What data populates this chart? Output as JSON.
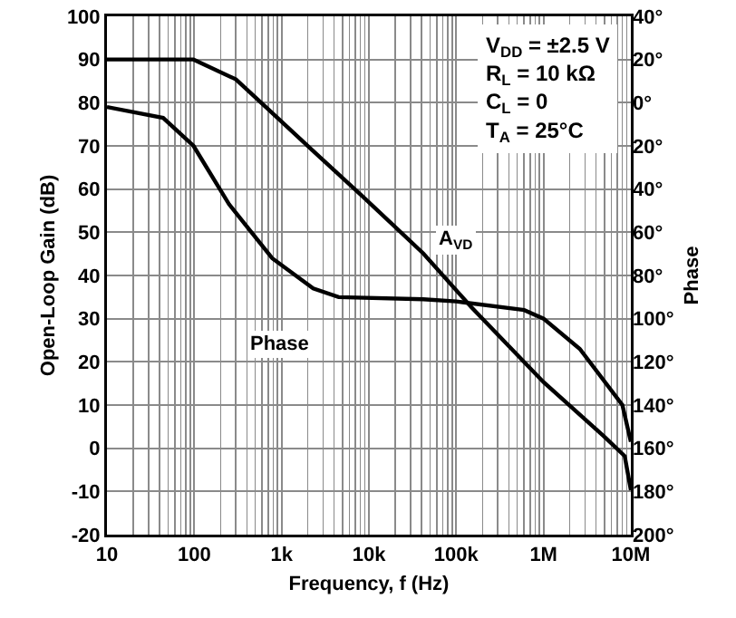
{
  "chart_data": {
    "type": "line",
    "xlabel": "Frequency, f (Hz)",
    "ylabel": "Open-Loop Gain (dB)",
    "y2label": "Phase",
    "xlim": [
      10,
      10000000
    ],
    "xticks": [
      10,
      100,
      {
        "value": 1000,
        "label": "1k"
      },
      {
        "value": 10000,
        "label": "10k"
      },
      {
        "value": 100000,
        "label": "100k"
      },
      {
        "value": 1000000,
        "label": "1M"
      },
      {
        "value": 10000000,
        "label": "10M"
      }
    ],
    "ylim": [
      -20,
      100
    ],
    "yticks": [
      -20,
      -10,
      0,
      10,
      20,
      30,
      40,
      50,
      60,
      70,
      80,
      90,
      100
    ],
    "y2lim": [
      200,
      -40
    ],
    "y2ticks": [
      {
        "value": -40,
        "label": "40°"
      },
      {
        "value": -20,
        "label": "20°"
      },
      {
        "value": 0,
        "label": "0°"
      },
      {
        "value": 20,
        "label": "20°"
      },
      {
        "value": 40,
        "label": "40°"
      },
      {
        "value": 60,
        "label": "60°"
      },
      {
        "value": 80,
        "label": "80°"
      },
      {
        "value": 100,
        "label": "100°"
      },
      {
        "value": 120,
        "label": "120°"
      },
      {
        "value": 140,
        "label": "140°"
      },
      {
        "value": 160,
        "label": "160°"
      },
      {
        "value": 180,
        "label": "180°"
      },
      {
        "value": 200,
        "label": "200°"
      }
    ],
    "log": "x",
    "grid": true,
    "marker": "none",
    "line_style": "solid",
    "series": [
      {
        "color": "#000000",
        "x": [
          10,
          50,
          98,
          300,
          660,
          2300,
          8500,
          42000,
          150000,
          1000000,
          4900000,
          8500000,
          10000000
        ],
        "values": [
          90,
          90,
          90,
          85.4,
          79,
          68.8,
          58.3,
          45.1,
          32.6,
          15.3,
          2.8,
          -1.8,
          -9.7
        ]
      },
      {
        "color": "#000000",
        "axis": "y2",
        "x": [
          10,
          44,
          98,
          250,
          780,
          2300,
          4500,
          42000,
          100000,
          600000,
          1000000,
          2600000,
          8000000,
          10000000
        ],
        "values": [
          2,
          7,
          20,
          47,
          72,
          86,
          90,
          91,
          92,
          96,
          100,
          114,
          140,
          157
        ]
      }
    ],
    "annotations": [
      {
        "text": "A$_{VD}$",
        "x": 100000,
        "y": 48
      },
      {
        "text": "Phase",
        "x": 950,
        "y": 24
      },
      "V$_{DD}$ = ±2.5 V",
      "R$_{L}$ = 10 kΩ",
      "C$_{L}$ = 0",
      "T$_{A}$ = 25°C"
    ]
  }
}
